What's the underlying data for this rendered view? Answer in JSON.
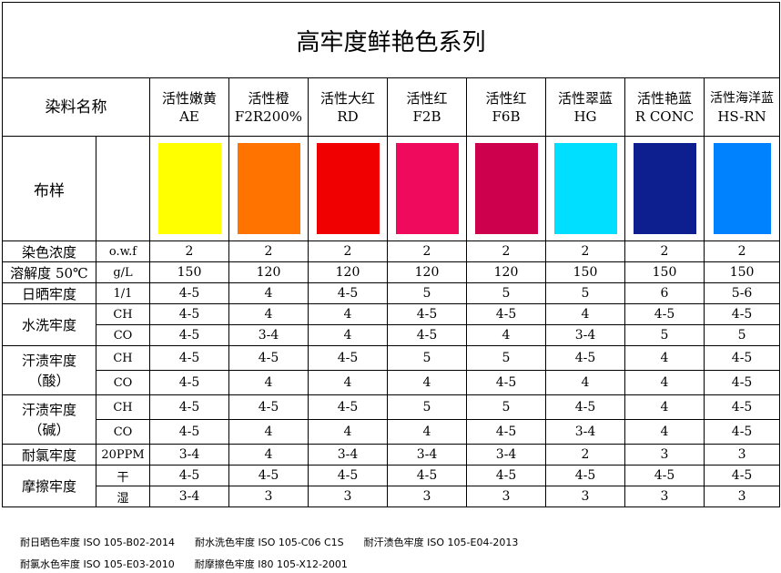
{
  "title": "高牢度鲜艳色系列",
  "header_label": "染料名称",
  "dyes": [
    {
      "name": "活性嫩黄",
      "code": "AE",
      "color": "#ffff00"
    },
    {
      "name": "活性橙",
      "code": "F2R200%",
      "color": "#ff7300"
    },
    {
      "name": "活性大红",
      "code": "RD",
      "color": "#f00000"
    },
    {
      "name": "活性红",
      "code": "F2B",
      "color": "#f00a5e"
    },
    {
      "name": "活性红",
      "code": "F6B",
      "color": "#cc004d"
    },
    {
      "name": "活性翠蓝",
      "code": "HG",
      "color": "#00dfff"
    },
    {
      "name": "活性艳蓝",
      "code": "R CONC",
      "color": "#0d1f8f"
    },
    {
      "name": "活性海洋蓝",
      "code": "HS-RN",
      "color": "#0082ff"
    }
  ],
  "swatch_label": "布样",
  "rows": [
    {
      "label": "染色浓度",
      "unit": "o.w.f",
      "values": [
        "2",
        "2",
        "2",
        "2",
        "2",
        "2",
        "2",
        "2"
      ]
    },
    {
      "label": "溶解度 50℃",
      "unit": "g/L",
      "values": [
        "150",
        "120",
        "120",
        "120",
        "120",
        "150",
        "150",
        "150"
      ]
    },
    {
      "label": "日晒牢度",
      "unit": "1/1",
      "values": [
        "4-5",
        "4",
        "4-5",
        "5",
        "5",
        "5",
        "6",
        "5-6"
      ]
    },
    {
      "label": "水洗牢度",
      "sub": [
        {
          "unit": "CH",
          "values": [
            "4-5",
            "4",
            "4",
            "4-5",
            "4-5",
            "4",
            "4-5",
            "4-5"
          ]
        },
        {
          "unit": "CO",
          "values": [
            "4-5",
            "3-4",
            "4",
            "4-5",
            "4",
            "3-4",
            "5",
            "5"
          ]
        }
      ]
    },
    {
      "label_line1": "汗渍牢度",
      "label_line2": "（酸）",
      "sub": [
        {
          "unit": "CH",
          "values": [
            "4-5",
            "4-5",
            "4-5",
            "5",
            "5",
            "4-5",
            "4",
            "4-5"
          ]
        },
        {
          "unit": "CO",
          "values": [
            "4-5",
            "4",
            "4",
            "4",
            "4-5",
            "4",
            "4",
            "4-5"
          ]
        }
      ]
    },
    {
      "label_line1": "汗渍牢度",
      "label_line2": "（碱）",
      "sub": [
        {
          "unit": "CH",
          "values": [
            "4-5",
            "4-5",
            "4-5",
            "5",
            "5",
            "4-5",
            "4",
            "4-5"
          ]
        },
        {
          "unit": "CO",
          "values": [
            "4-5",
            "4",
            "4",
            "4",
            "4-5",
            "3-4",
            "4",
            "4-5"
          ]
        }
      ]
    },
    {
      "label": "耐氯牢度",
      "unit": "20PPM",
      "values": [
        "3-4",
        "4",
        "3-4",
        "3-4",
        "3-4",
        "2",
        "3",
        "3"
      ]
    },
    {
      "label": "摩擦牢度",
      "sub": [
        {
          "unit": "干",
          "values": [
            "4-5",
            "4-5",
            "4-5",
            "4-5",
            "4-5",
            "4-5",
            "4-5",
            "4-5"
          ]
        },
        {
          "unit": "湿",
          "values": [
            "3-4",
            "3",
            "3",
            "3",
            "3",
            "3",
            "3",
            "3"
          ]
        }
      ]
    }
  ],
  "footer": {
    "line1": [
      "耐日晒色牢度 ISO 105-B02-2014",
      "耐水洗色牢度 ISO 105-C06 C1S",
      "耐汗渍色牢度 ISO 105-E04-2013"
    ],
    "line2": [
      "耐氯水色牢度 ISO 105-E03-2010",
      "耐摩擦色牢度 I80 105-X12-2001"
    ]
  }
}
